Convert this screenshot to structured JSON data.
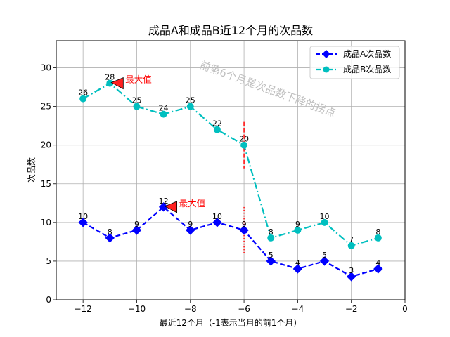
{
  "chart_data": {
    "type": "line",
    "title": "成品A和成品B近12个月的次品数",
    "xlabel": "最近12个月（-1表示当月的前1个月）",
    "ylabel": "次品数",
    "xlim": [
      -13,
      0
    ],
    "ylim": [
      0,
      33.5
    ],
    "xticks": [
      -12,
      -10,
      -8,
      -6,
      -4,
      -2,
      0
    ],
    "yticks": [
      0,
      5,
      10,
      15,
      20,
      25,
      30
    ],
    "grid": true,
    "legend_position": "top-right",
    "x": [
      -12,
      -11,
      -10,
      -9,
      -8,
      -7,
      -6,
      -5,
      -4,
      -3,
      -2,
      -1
    ],
    "series": [
      {
        "name": "成品A次品数",
        "values": [
          10,
          8,
          9,
          12,
          9,
          10,
          9,
          5,
          4,
          5,
          3,
          4
        ],
        "color": "#0000ff",
        "marker": "diamond",
        "linestyle": "dashed"
      },
      {
        "name": "成品B次品数",
        "values": [
          26,
          28,
          25,
          24,
          25,
          22,
          20,
          8,
          9,
          10,
          7,
          8
        ],
        "color": "#00bfbf",
        "marker": "circle",
        "linestyle": "dashdot"
      }
    ],
    "annotations": [
      {
        "text": "最大值",
        "x": -11,
        "y": 28,
        "color": "#ff0000"
      },
      {
        "text": "最大值",
        "x": -9,
        "y": 12,
        "color": "#ff0000"
      },
      {
        "text": "前第6个月是次品数下降的拐点",
        "x": -6,
        "y": 27,
        "color": "#bfbfbf",
        "rotation": 20
      }
    ],
    "vlines": [
      {
        "x": -6,
        "y_range": [
          17,
          23
        ],
        "color": "#ff0000",
        "style": "dashed"
      },
      {
        "x": -6,
        "y_range": [
          6,
          12
        ],
        "color": "#ff0000",
        "style": "dotted"
      }
    ]
  }
}
